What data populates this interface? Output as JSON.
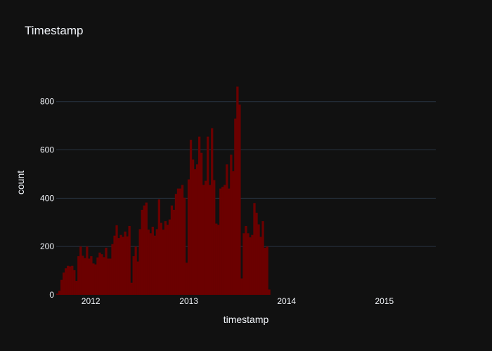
{
  "chart_data": {
    "type": "bar",
    "title": "Timestamp",
    "xlabel": "timestamp",
    "ylabel": "count",
    "bar_color": "#6b0000",
    "background_color": "#111111",
    "grid_color": "#283442",
    "grid": true,
    "ylim": [
      0,
      930
    ],
    "xlim": [
      "2011-08-25",
      "2015-07-12"
    ],
    "y_ticks": [
      0,
      200,
      400,
      600,
      800
    ],
    "x_ticks": [
      {
        "value": "2012-01-01",
        "label": "2012"
      },
      {
        "value": "2013-01-01",
        "label": "2013"
      },
      {
        "value": "2014-01-01",
        "label": "2014"
      },
      {
        "value": "2015-01-01",
        "label": "2015"
      }
    ],
    "x_start": "2011-08-25",
    "bin_days": 7.91,
    "values": [
      5,
      17,
      62,
      92,
      110,
      120,
      118,
      120,
      102,
      58,
      160,
      200,
      162,
      152,
      200,
      150,
      160,
      130,
      126,
      155,
      175,
      168,
      156,
      195,
      150,
      150,
      210,
      245,
      288,
      235,
      248,
      240,
      262,
      242,
      285,
      50,
      160,
      200,
      138,
      272,
      352,
      370,
      382,
      270,
      255,
      282,
      245,
      272,
      395,
      298,
      270,
      305,
      290,
      312,
      370,
      352,
      418,
      440,
      440,
      455,
      402,
      133,
      478,
      642,
      560,
      520,
      540,
      655,
      588,
      455,
      472,
      655,
      455,
      690,
      475,
      295,
      290,
      440,
      447,
      455,
      540,
      440,
      580,
      512,
      730,
      862,
      788,
      68,
      255,
      285,
      255,
      238,
      248,
      380,
      340,
      292,
      240,
      305,
      195,
      200,
      22
    ]
  }
}
